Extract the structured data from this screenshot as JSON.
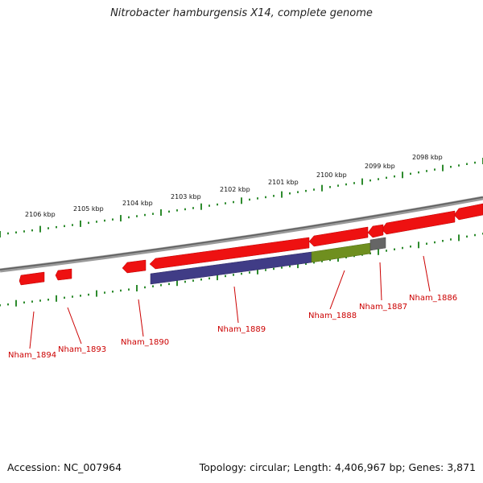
{
  "title": "Nitrobacter hamburgensis X14, complete genome",
  "footer": {
    "accession": "Accession: NC_007964",
    "summary": "Topology: circular; Length: 4,406,967 bp; Genes: 3,871"
  },
  "colors": {
    "backbone": "#7a7a7a",
    "ticks": "#2e8b2e",
    "gene_red": "#ee1111",
    "gene_blue": "#403c86",
    "gene_green": "#6f8f1f",
    "gene_gray": "#666666",
    "label": "#cc0000"
  },
  "kbp_labels": [
    "2106 kbp",
    "2105 kbp",
    "2104 kbp",
    "2103 kbp",
    "2102 kbp",
    "2101 kbp",
    "2100 kbp",
    "2099 kbp",
    "2098 kbp"
  ],
  "gene_labels": [
    "Nham_1894",
    "Nham_1893",
    "Nham_1890",
    "Nham_1889",
    "Nham_1888",
    "Nham_1887",
    "Nham_1886"
  ]
}
